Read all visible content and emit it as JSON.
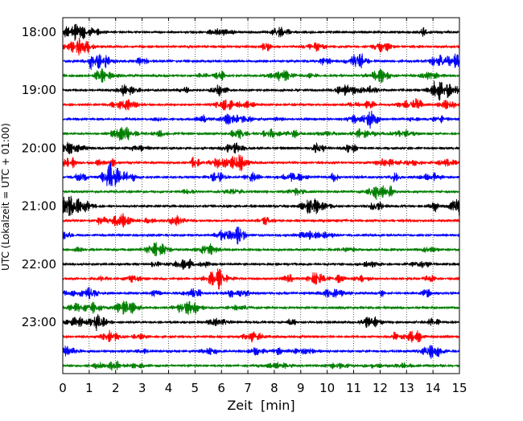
{
  "chart_data": {
    "type": "line",
    "title": "",
    "xlabel": "Zeit  [min]",
    "ylabel": "UTC (Lokalzeit = UTC + 01:00)",
    "xlim": [
      0,
      15
    ],
    "x_ticks": [
      "0",
      "1",
      "2",
      "3",
      "4",
      "5",
      "6",
      "7",
      "8",
      "9",
      "10",
      "11",
      "12",
      "13",
      "14",
      "15"
    ],
    "y_ticks": [
      "18:00",
      "19:00",
      "20:00",
      "21:00",
      "22:00",
      "23:00"
    ],
    "grid": "vertical-dotted",
    "trace_colors": [
      "#000000",
      "#ff0000",
      "#0000ff",
      "#007f00"
    ],
    "traces": [
      {
        "start": "18:00",
        "color": "#000000"
      },
      {
        "start": "18:15",
        "color": "#ff0000"
      },
      {
        "start": "18:30",
        "color": "#0000ff"
      },
      {
        "start": "18:45",
        "color": "#007f00"
      },
      {
        "start": "19:00",
        "color": "#000000"
      },
      {
        "start": "19:15",
        "color": "#ff0000"
      },
      {
        "start": "19:30",
        "color": "#0000ff"
      },
      {
        "start": "19:45",
        "color": "#007f00"
      },
      {
        "start": "20:00",
        "color": "#000000"
      },
      {
        "start": "20:15",
        "color": "#ff0000"
      },
      {
        "start": "20:30",
        "color": "#0000ff"
      },
      {
        "start": "20:45",
        "color": "#007f00"
      },
      {
        "start": "21:00",
        "color": "#000000"
      },
      {
        "start": "21:15",
        "color": "#ff0000"
      },
      {
        "start": "21:30",
        "color": "#0000ff"
      },
      {
        "start": "21:45",
        "color": "#007f00"
      },
      {
        "start": "22:00",
        "color": "#000000"
      },
      {
        "start": "22:15",
        "color": "#ff0000"
      },
      {
        "start": "22:30",
        "color": "#0000ff"
      },
      {
        "start": "22:45",
        "color": "#007f00"
      },
      {
        "start": "23:00",
        "color": "#000000"
      },
      {
        "start": "23:15",
        "color": "#ff0000"
      },
      {
        "start": "23:30",
        "color": "#0000ff"
      },
      {
        "start": "23:45",
        "color": "#007f00"
      }
    ]
  }
}
